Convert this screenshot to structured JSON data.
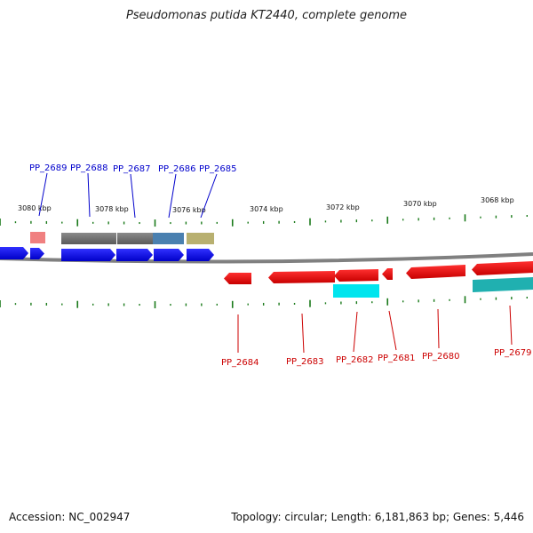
{
  "title": "Pseudomonas putida KT2440, complete genome",
  "footer": {
    "accession": "Accession: NC_002947",
    "stats": "Topology: circular; Length: 6,181,863 bp; Genes: 5,446"
  },
  "scale_labels": [
    "3080 kbp",
    "3078 kbp",
    "3076 kbp",
    "3074 kbp",
    "3072 kbp",
    "3070 kbp",
    "3068 kbp"
  ],
  "top_gene_labels": [
    "PP_2689",
    "PP_2688",
    "PP_2687",
    "PP_2686",
    "PP_2685"
  ],
  "bottom_gene_labels": [
    "PP_2684",
    "PP_2683",
    "PP_2682",
    "PP_2681",
    "PP_2680",
    "PP_2679"
  ],
  "colors": {
    "forward_gene": "#0000ee",
    "reverse_gene": "#ee0000",
    "backbone": "#808080",
    "tick": "#1a7a1a",
    "label_top": "#0000cc",
    "label_bottom": "#cc0000",
    "feature_gray": "#707070",
    "feature_steel": "#4a80b0",
    "feature_olive": "#b8b070",
    "feature_pink": "#f08080",
    "feature_cyan": "#00e5ee",
    "feature_teal": "#20b0b0"
  },
  "icons": [
    "forward-arrow-icon",
    "reverse-arrow-icon"
  ]
}
